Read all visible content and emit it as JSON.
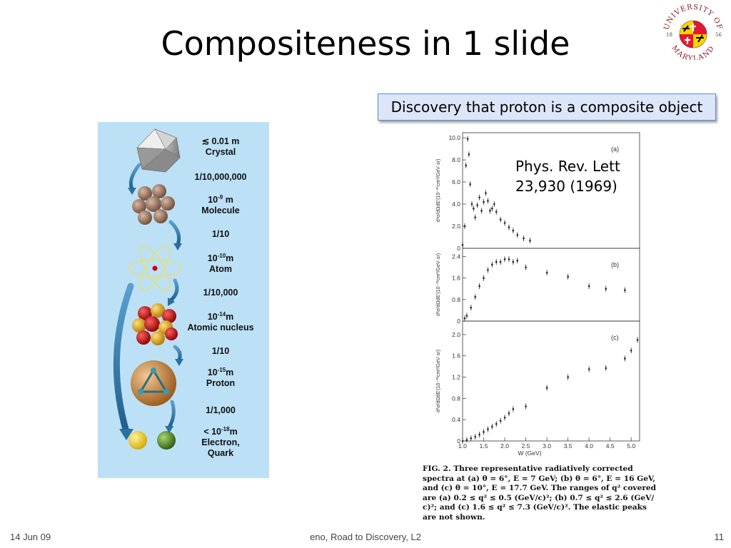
{
  "slide": {
    "title": "Compositeness in 1 slide",
    "callout": "Discovery that proton is a composite object",
    "reference_lines": [
      "Phys. Rev. Lett",
      "23,930 (1969)"
    ],
    "footer_date": "14 Jun 09",
    "footer_center": "eno, Road to Discovery, L2",
    "page_number": "11"
  },
  "logo": {
    "text": "UNIVERSITY OF MARYLAND",
    "year_left": "18",
    "year_right": "56",
    "colors": [
      "#e21833",
      "#ffd200",
      "#000000",
      "#ffffff"
    ]
  },
  "scale_panel": {
    "background": "#bce0f5",
    "labels": [
      {
        "text": "≲ 0.01 m",
        "sub": "Crystal"
      },
      {
        "text": "1/10,000,000"
      },
      {
        "text": "10",
        "sup": "-9",
        "unit": " m",
        "sub": "Molecule"
      },
      {
        "text": "1/10"
      },
      {
        "text": "10",
        "sup": "-10",
        "unit": "m",
        "sub": "Atom"
      },
      {
        "text": "1/10,000"
      },
      {
        "text": "10",
        "sup": "-14",
        "unit": "m",
        "sub": "Atomic nucleus"
      },
      {
        "text": "1/10"
      },
      {
        "text": "10",
        "sup": "-15",
        "unit": "m",
        "sub": "Proton"
      },
      {
        "text": "1/1,000"
      },
      {
        "text": "< 10",
        "sup": "-18",
        "unit": "m",
        "sub": "Electron,",
        "sub2": "Quark"
      }
    ]
  },
  "chart_data": {
    "type": "scatter",
    "xlabel": "W (GeV)",
    "x_ticks": [
      "1.0",
      "1.5",
      "2.0",
      "2.5",
      "3.0",
      "3.5",
      "4.0",
      "4.5",
      "5.0"
    ],
    "xlim": [
      1.0,
      5.2
    ],
    "panels": [
      {
        "label": "(a)",
        "ylabel": "d²σ/dΩdE′(10⁻³⁰cm²/GeV·sr)",
        "y_ticks": [
          "0",
          "2.0",
          "4.0",
          "6.0",
          "8.0",
          "10.0"
        ],
        "ylim": [
          0,
          10.2
        ],
        "x": [
          1.0,
          1.05,
          1.08,
          1.12,
          1.15,
          1.18,
          1.22,
          1.26,
          1.3,
          1.35,
          1.4,
          1.45,
          1.5,
          1.55,
          1.6,
          1.65,
          1.7,
          1.75,
          1.8,
          1.9,
          2.0,
          2.1,
          2.2,
          2.3,
          2.45,
          2.6
        ],
        "y": [
          0.3,
          2.0,
          7.5,
          9.9,
          8.5,
          5.8,
          4.0,
          3.6,
          2.8,
          3.9,
          4.6,
          3.4,
          4.2,
          5.0,
          4.3,
          3.4,
          3.6,
          4.0,
          3.3,
          2.6,
          2.3,
          1.9,
          1.6,
          1.2,
          0.9,
          0.7
        ]
      },
      {
        "label": "(b)",
        "ylabel": "d²σ/dΩdE′(10⁻³¹cm²/GeV·sr)",
        "y_ticks": [
          "0",
          "0.8",
          "1.6",
          "2.4"
        ],
        "ylim": [
          0,
          2.6
        ],
        "x": [
          1.05,
          1.1,
          1.2,
          1.3,
          1.4,
          1.5,
          1.6,
          1.7,
          1.8,
          1.9,
          2.0,
          2.1,
          2.2,
          2.3,
          2.5,
          3.0,
          3.5,
          4.0,
          4.4,
          4.85
        ],
        "y": [
          0.1,
          0.2,
          0.5,
          0.9,
          1.3,
          1.6,
          1.9,
          2.1,
          2.2,
          2.2,
          2.3,
          2.3,
          2.2,
          2.25,
          2.0,
          1.8,
          1.65,
          1.3,
          1.2,
          1.15
        ]
      },
      {
        "label": "(c)",
        "ylabel": "d²σ/dΩdE′(10⁻³²cm²/GeV·sr)",
        "y_ticks": [
          "0",
          "0.4",
          "0.8",
          "1.2",
          "1.6",
          "2.0"
        ],
        "ylim": [
          0,
          2.2
        ],
        "x": [
          1.0,
          1.1,
          1.2,
          1.3,
          1.4,
          1.5,
          1.6,
          1.7,
          1.8,
          1.9,
          2.0,
          2.1,
          2.2,
          2.5,
          3.0,
          3.5,
          4.0,
          4.4,
          4.85,
          5.0,
          5.15
        ],
        "y": [
          0.0,
          0.02,
          0.05,
          0.08,
          0.12,
          0.17,
          0.22,
          0.27,
          0.32,
          0.38,
          0.44,
          0.52,
          0.6,
          0.65,
          1.0,
          1.2,
          1.35,
          1.37,
          1.55,
          1.7,
          1.9
        ]
      }
    ]
  },
  "caption_lines": [
    "FIG. 2.  Three representative radiatively corrected",
    "spectra at (a) θ = 6°, E = 7 GeV;  (b) θ = 6°, E = 16 GeV,",
    "and (c) θ = 10°, E = 17.7 GeV.  The ranges of q² covered",
    "are (a) 0.2 ≤ q² ≤ 0.5 (GeV/c)²;  (b) 0.7 ≤ q² ≤ 2.6 (GeV/",
    "c)²;  and (c) 1.6 ≤ q² ≤ 7.3 (GeV/c)².  The elastic peaks",
    "are not shown."
  ]
}
